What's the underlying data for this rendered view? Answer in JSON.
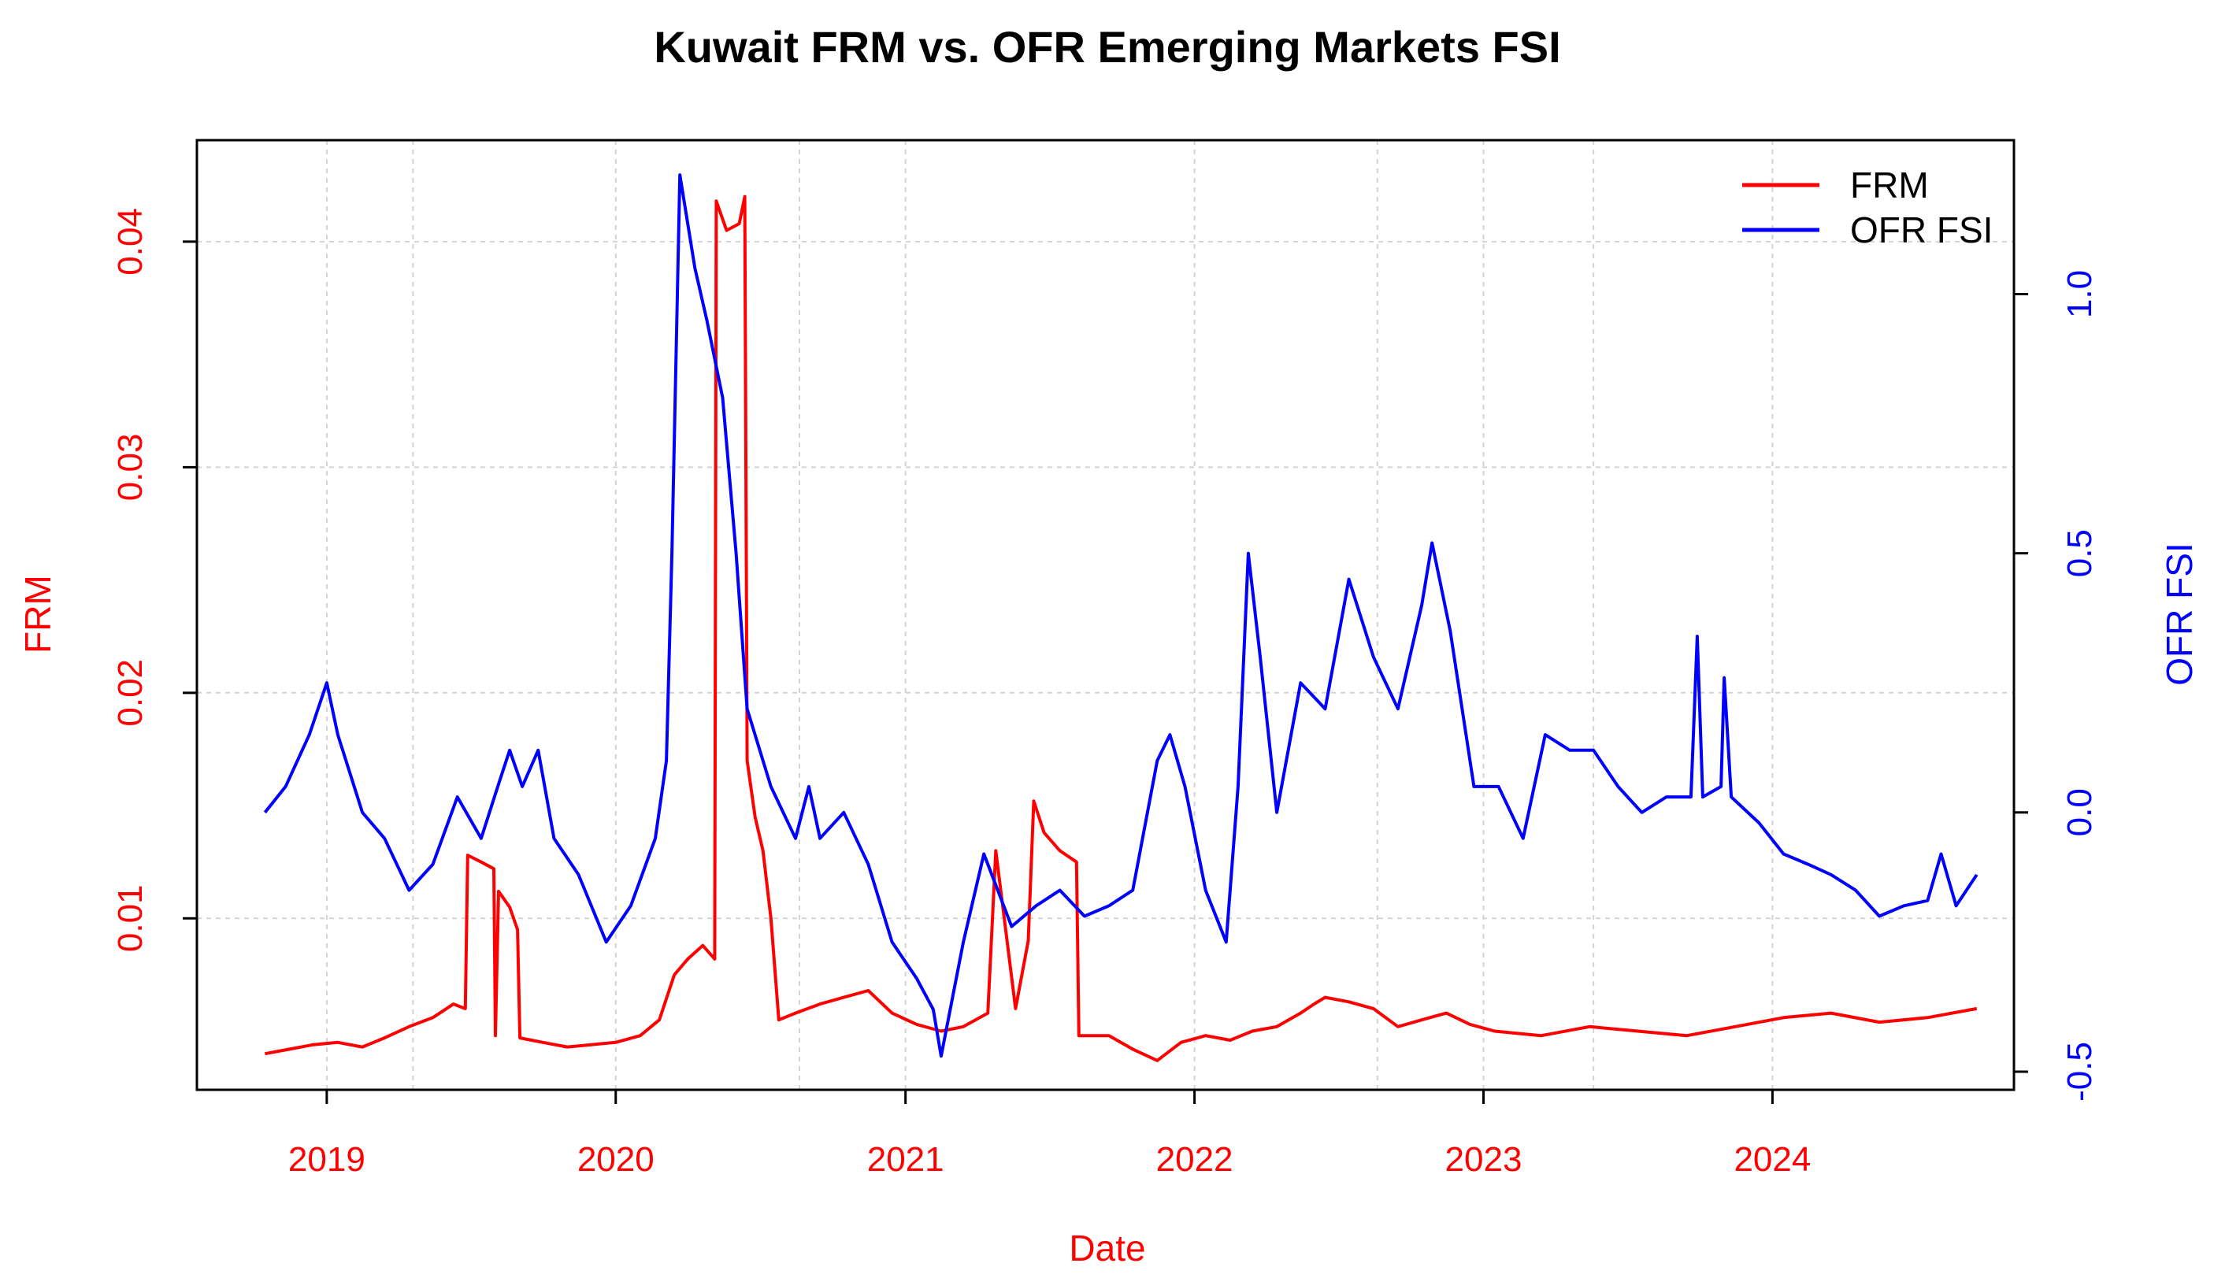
{
  "chart_data": {
    "type": "line",
    "title": "Kuwait FRM vs. OFR Emerging Markets FSI",
    "xlabel": "Date",
    "ylabel_left": "FRM",
    "ylabel_right": "OFR FSI",
    "x_ticks": [
      "2019",
      "2020",
      "2021",
      "2022",
      "2023",
      "2024"
    ],
    "y_left_ticks": [
      "0.01",
      "0.02",
      "0.03",
      "0.04"
    ],
    "y_right_ticks": [
      "-0.5",
      "0.0",
      "0.5",
      "1.0"
    ],
    "xlim": [
      "2018-07-21",
      "2024-11-01"
    ],
    "ylim_left": [
      0.0024,
      0.0445
    ],
    "ylim_right": [
      -0.535,
      1.297
    ],
    "grid": true,
    "legend_position": "top-right",
    "colors": {
      "frm": "#ff0000",
      "fsi": "#0000ff"
    },
    "series": [
      {
        "name": "FRM",
        "axis": "left",
        "points": [
          [
            "2018-10-15",
            0.004
          ],
          [
            "2018-11-15",
            0.0042
          ],
          [
            "2018-12-15",
            0.0044
          ],
          [
            "2019-01-15",
            0.0045
          ],
          [
            "2019-02-15",
            0.0043
          ],
          [
            "2019-03-15",
            0.0047
          ],
          [
            "2019-04-15",
            0.0052
          ],
          [
            "2019-05-15",
            0.0056
          ],
          [
            "2019-06-10",
            0.0062
          ],
          [
            "2019-06-25",
            0.006
          ],
          [
            "2019-06-28",
            0.0128
          ],
          [
            "2019-07-15",
            0.0125
          ],
          [
            "2019-07-31",
            0.0122
          ],
          [
            "2019-08-02",
            0.0048
          ],
          [
            "2019-08-06",
            0.0112
          ],
          [
            "2019-08-20",
            0.0105
          ],
          [
            "2019-08-30",
            0.0095
          ],
          [
            "2019-09-02",
            0.0047
          ],
          [
            "2019-10-01",
            0.0045
          ],
          [
            "2019-11-01",
            0.0043
          ],
          [
            "2019-12-01",
            0.0044
          ],
          [
            "2020-01-01",
            0.0045
          ],
          [
            "2020-02-01",
            0.0048
          ],
          [
            "2020-02-25",
            0.0055
          ],
          [
            "2020-03-15",
            0.0075
          ],
          [
            "2020-04-01",
            0.0082
          ],
          [
            "2020-04-20",
            0.0088
          ],
          [
            "2020-05-05",
            0.0082
          ],
          [
            "2020-05-07",
            0.0418
          ],
          [
            "2020-05-20",
            0.0405
          ],
          [
            "2020-06-05",
            0.0408
          ],
          [
            "2020-06-12",
            0.042
          ],
          [
            "2020-06-15",
            0.017
          ],
          [
            "2020-06-25",
            0.0145
          ],
          [
            "2020-07-05",
            0.013
          ],
          [
            "2020-07-15",
            0.01
          ],
          [
            "2020-07-25",
            0.0055
          ],
          [
            "2020-08-15",
            0.0058
          ],
          [
            "2020-09-15",
            0.0062
          ],
          [
            "2020-10-15",
            0.0065
          ],
          [
            "2020-11-15",
            0.0068
          ],
          [
            "2020-12-15",
            0.0058
          ],
          [
            "2021-01-15",
            0.0053
          ],
          [
            "2021-02-15",
            0.005
          ],
          [
            "2021-03-15",
            0.0052
          ],
          [
            "2021-04-15",
            0.0058
          ],
          [
            "2021-04-25",
            0.013
          ],
          [
            "2021-05-20",
            0.006
          ],
          [
            "2021-06-05",
            0.009
          ],
          [
            "2021-06-12",
            0.0152
          ],
          [
            "2021-06-25",
            0.0138
          ],
          [
            "2021-07-15",
            0.013
          ],
          [
            "2021-08-05",
            0.0125
          ],
          [
            "2021-08-08",
            0.0048
          ],
          [
            "2021-09-15",
            0.0048
          ],
          [
            "2021-10-15",
            0.0042
          ],
          [
            "2021-11-15",
            0.0037
          ],
          [
            "2021-12-15",
            0.0045
          ],
          [
            "2022-01-15",
            0.0048
          ],
          [
            "2022-02-15",
            0.0046
          ],
          [
            "2022-03-15",
            0.005
          ],
          [
            "2022-04-15",
            0.0052
          ],
          [
            "2022-05-15",
            0.0058
          ],
          [
            "2022-06-01",
            0.0062
          ],
          [
            "2022-06-15",
            0.0065
          ],
          [
            "2022-07-15",
            0.0063
          ],
          [
            "2022-08-15",
            0.006
          ],
          [
            "2022-09-15",
            0.0052
          ],
          [
            "2022-10-15",
            0.0055
          ],
          [
            "2022-11-15",
            0.0058
          ],
          [
            "2022-12-15",
            0.0053
          ],
          [
            "2023-01-15",
            0.005
          ],
          [
            "2023-03-15",
            0.0048
          ],
          [
            "2023-05-15",
            0.0052
          ],
          [
            "2023-07-15",
            0.005
          ],
          [
            "2023-09-15",
            0.0048
          ],
          [
            "2023-11-15",
            0.0052
          ],
          [
            "2024-01-15",
            0.0056
          ],
          [
            "2024-03-15",
            0.0058
          ],
          [
            "2024-05-15",
            0.0054
          ],
          [
            "2024-07-15",
            0.0056
          ],
          [
            "2024-09-15",
            0.006
          ]
        ]
      },
      {
        "name": "OFR FSI",
        "axis": "right",
        "points": [
          [
            "2018-10-15",
            0.0
          ],
          [
            "2018-11-10",
            0.05
          ],
          [
            "2018-12-10",
            0.15
          ],
          [
            "2019-01-01",
            0.25
          ],
          [
            "2019-01-15",
            0.15
          ],
          [
            "2019-02-15",
            0.0
          ],
          [
            "2019-03-15",
            -0.05
          ],
          [
            "2019-04-15",
            -0.15
          ],
          [
            "2019-05-15",
            -0.1
          ],
          [
            "2019-06-15",
            0.03
          ],
          [
            "2019-07-15",
            -0.05
          ],
          [
            "2019-08-05",
            0.05
          ],
          [
            "2019-08-20",
            0.12
          ],
          [
            "2019-09-05",
            0.05
          ],
          [
            "2019-09-25",
            0.12
          ],
          [
            "2019-10-15",
            -0.05
          ],
          [
            "2019-11-15",
            -0.12
          ],
          [
            "2019-12-20",
            -0.25
          ],
          [
            "2020-01-20",
            -0.18
          ],
          [
            "2020-02-20",
            -0.05
          ],
          [
            "2020-03-05",
            0.1
          ],
          [
            "2020-03-12",
            0.5
          ],
          [
            "2020-03-22",
            1.23
          ],
          [
            "2020-04-10",
            1.05
          ],
          [
            "2020-04-25",
            0.95
          ],
          [
            "2020-05-15",
            0.8
          ],
          [
            "2020-06-01",
            0.5
          ],
          [
            "2020-06-15",
            0.2
          ],
          [
            "2020-07-15",
            0.05
          ],
          [
            "2020-08-15",
            -0.05
          ],
          [
            "2020-09-01",
            0.05
          ],
          [
            "2020-09-15",
            -0.05
          ],
          [
            "2020-10-15",
            0.0
          ],
          [
            "2020-11-15",
            -0.1
          ],
          [
            "2020-12-15",
            -0.25
          ],
          [
            "2021-01-15",
            -0.32
          ],
          [
            "2021-02-05",
            -0.38
          ],
          [
            "2021-02-15",
            -0.47
          ],
          [
            "2021-03-15",
            -0.25
          ],
          [
            "2021-04-10",
            -0.08
          ],
          [
            "2021-05-15",
            -0.22
          ],
          [
            "2021-06-15",
            -0.18
          ],
          [
            "2021-07-15",
            -0.15
          ],
          [
            "2021-08-15",
            -0.2
          ],
          [
            "2021-09-15",
            -0.18
          ],
          [
            "2021-10-15",
            -0.15
          ],
          [
            "2021-11-15",
            0.1
          ],
          [
            "2021-12-01",
            0.15
          ],
          [
            "2021-12-20",
            0.05
          ],
          [
            "2022-01-15",
            -0.15
          ],
          [
            "2022-02-10",
            -0.25
          ],
          [
            "2022-02-25",
            0.05
          ],
          [
            "2022-03-10",
            0.5
          ],
          [
            "2022-03-25",
            0.3
          ],
          [
            "2022-04-15",
            0.0
          ],
          [
            "2022-05-15",
            0.25
          ],
          [
            "2022-06-15",
            0.2
          ],
          [
            "2022-07-15",
            0.45
          ],
          [
            "2022-08-15",
            0.3
          ],
          [
            "2022-09-15",
            0.2
          ],
          [
            "2022-10-15",
            0.4
          ],
          [
            "2022-10-28",
            0.52
          ],
          [
            "2022-11-20",
            0.35
          ],
          [
            "2022-12-20",
            0.05
          ],
          [
            "2023-01-20",
            0.05
          ],
          [
            "2023-02-20",
            -0.05
          ],
          [
            "2023-03-20",
            0.15
          ],
          [
            "2023-04-20",
            0.12
          ],
          [
            "2023-05-20",
            0.12
          ],
          [
            "2023-06-20",
            0.05
          ],
          [
            "2023-07-20",
            0.0
          ],
          [
            "2023-08-20",
            0.03
          ],
          [
            "2023-09-20",
            0.03
          ],
          [
            "2023-09-28",
            0.34
          ],
          [
            "2023-10-05",
            0.03
          ],
          [
            "2023-10-28",
            0.05
          ],
          [
            "2023-11-01",
            0.26
          ],
          [
            "2023-11-10",
            0.03
          ],
          [
            "2023-12-15",
            -0.02
          ],
          [
            "2024-01-15",
            -0.08
          ],
          [
            "2024-02-15",
            -0.1
          ],
          [
            "2024-03-15",
            -0.12
          ],
          [
            "2024-04-15",
            -0.15
          ],
          [
            "2024-05-15",
            -0.2
          ],
          [
            "2024-06-15",
            -0.18
          ],
          [
            "2024-07-15",
            -0.17
          ],
          [
            "2024-08-01",
            -0.08
          ],
          [
            "2024-08-20",
            -0.18
          ],
          [
            "2024-09-15",
            -0.12
          ]
        ]
      }
    ]
  }
}
